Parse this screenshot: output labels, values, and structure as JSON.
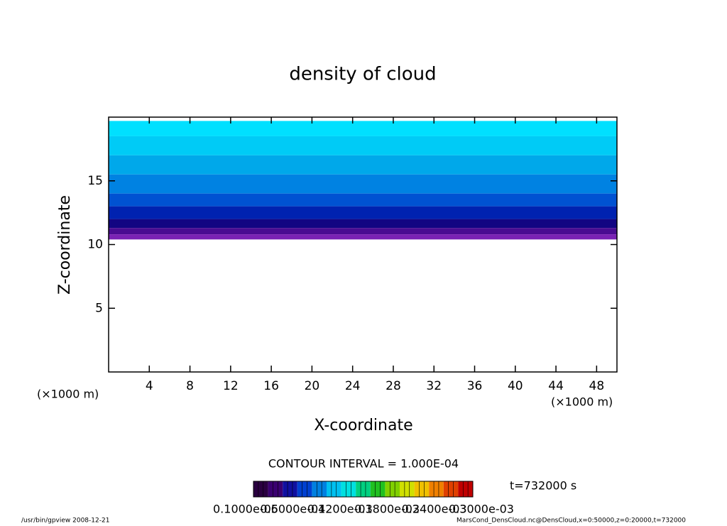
{
  "chart_data": {
    "type": "contour",
    "title": "density of cloud",
    "x_label": "X-coordinate",
    "y_label": "Z-coordinate",
    "x_unit": "(×1000 m)",
    "xlim": [
      0,
      50
    ],
    "ylim": [
      0,
      20
    ],
    "xticks": [
      4,
      8,
      12,
      16,
      20,
      24,
      28,
      32,
      36,
      40,
      44,
      48
    ],
    "yticks": [
      5,
      10,
      15
    ],
    "layers": [
      {
        "z": [
          18.5,
          19.7
        ],
        "color": "#00e0ff"
      },
      {
        "z": [
          17,
          18.5
        ],
        "color": "#00cbf6"
      },
      {
        "z": [
          15.5,
          17
        ],
        "color": "#00a8ea"
      },
      {
        "z": [
          14,
          15.5
        ],
        "color": "#0082e2"
      },
      {
        "z": [
          13,
          14
        ],
        "color": "#0052d2"
      },
      {
        "z": [
          12,
          13
        ],
        "color": "#0022b0"
      },
      {
        "z": [
          11.3,
          12
        ],
        "color": "#120582"
      },
      {
        "z": [
          10.8,
          11.3
        ],
        "color": "#4a0c92"
      },
      {
        "z": [
          10.4,
          10.8
        ],
        "color": "#7a22b4"
      }
    ],
    "contour_interval_text": "CONTOUR INTERVAL = 1.000E-04",
    "time_text": "t=732000 s",
    "colorbar_colors": [
      "#2a0040",
      "#3a0070",
      "#1010a0",
      "#0040d0",
      "#0080e0",
      "#00c0f0",
      "#00e0e0",
      "#00d080",
      "#20c020",
      "#80d000",
      "#d0e000",
      "#f0c000",
      "#f08000",
      "#e04000",
      "#c00000"
    ],
    "colorbar_labels": [
      "0.1000e-05",
      "0.6000e-04",
      "0.1200e-03",
      "0.1800e-03",
      "0.2400e-03",
      "0.3000e-03"
    ],
    "footer_left": "/usr/bin/gpview   2008-12-21",
    "footer_right": "MarsCond_DensCloud.nc@DensCloud,x=0:50000,z=0:20000,t=732000"
  }
}
